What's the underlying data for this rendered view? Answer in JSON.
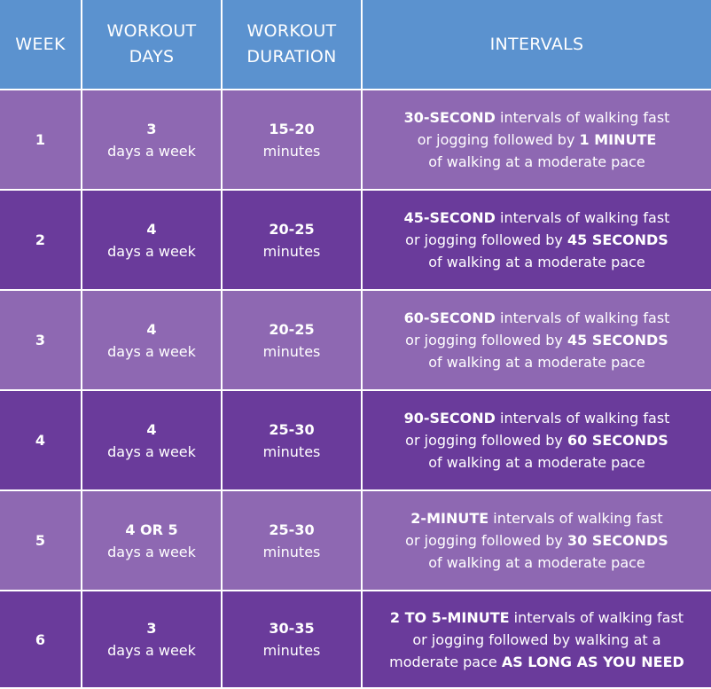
{
  "headers": {
    "week": "WEEK",
    "days_line1": "WORKOUT",
    "days_line2": "DAYS",
    "duration_line1": "WORKOUT",
    "duration_line2": "DURATION",
    "intervals": "INTERVALS"
  },
  "rows": [
    {
      "week": "1",
      "days": "3",
      "days_unit": "days a week",
      "duration": "15-20",
      "duration_unit": "minutes",
      "int_bold1": "30-SECOND",
      "int_text1": " intervals of walking fast",
      "int_text2": "or jogging followed by ",
      "int_bold2": "1 MINUTE",
      "int_text3": "of walking at a moderate pace"
    },
    {
      "week": "2",
      "days": "4",
      "days_unit": "days a week",
      "duration": "20-25",
      "duration_unit": "minutes",
      "int_bold1": "45-SECOND",
      "int_text1": " intervals of walking fast",
      "int_text2": "or jogging followed by ",
      "int_bold2": "45 SECONDS",
      "int_text3": "of walking at a moderate pace"
    },
    {
      "week": "3",
      "days": "4",
      "days_unit": "days a week",
      "duration": "20-25",
      "duration_unit": "minutes",
      "int_bold1": "60-SECOND",
      "int_text1": " intervals of walking fast",
      "int_text2": "or jogging followed by ",
      "int_bold2": "45 SECONDS",
      "int_text3": "of walking at a moderate pace"
    },
    {
      "week": "4",
      "days": "4",
      "days_unit": "days a week",
      "duration": "25-30",
      "duration_unit": "minutes",
      "int_bold1": "90-SECOND",
      "int_text1": " intervals of walking fast",
      "int_text2": "or jogging followed by ",
      "int_bold2": "60 SECONDS",
      "int_text3": "of walking at a moderate pace"
    },
    {
      "week": "5",
      "days": "4 OR 5",
      "days_unit": "days a week",
      "duration": "25-30",
      "duration_unit": "minutes",
      "int_bold1": "2-MINUTE",
      "int_text1": " intervals of walking fast",
      "int_text2": "or jogging followed by ",
      "int_bold2": "30 SECONDS",
      "int_text3": "of walking at a moderate pace"
    },
    {
      "week": "6",
      "days": "3",
      "days_unit": "days a week",
      "duration": "30-35",
      "duration_unit": "minutes",
      "int_bold1": "2 TO 5-MINUTE",
      "int_text1": " intervals of walking fast",
      "int_text2": "or jogging followed by walking at a",
      "int_text3a": "moderate pace ",
      "int_bold3": "AS LONG AS YOU NEED"
    }
  ],
  "colors": {
    "header": "#5b92cf",
    "row_light": "#8e68b2",
    "row_dark": "#6a3b9b"
  }
}
